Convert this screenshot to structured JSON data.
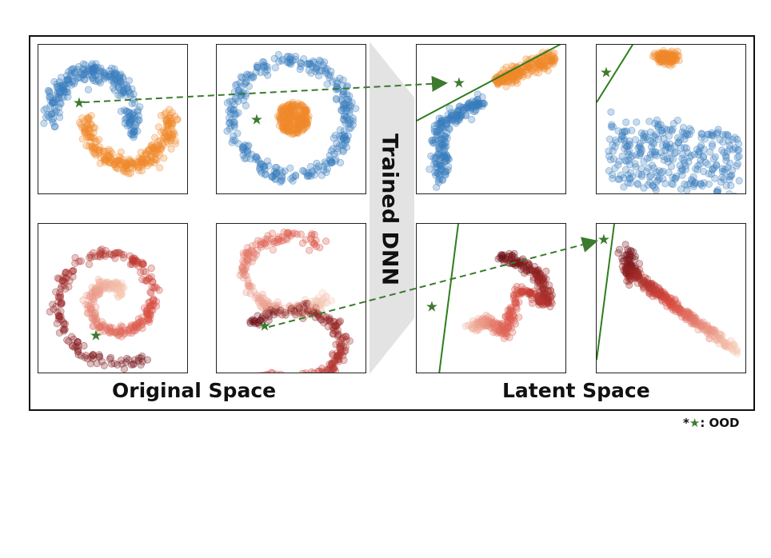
{
  "bar_label": "Trained DNN",
  "original_label": "Original Space",
  "latent_label": "Latent Space",
  "legend": {
    "prefix": "*",
    "icon": "green-star-icon",
    "text": ": OOD"
  },
  "colors": {
    "blue": "#3a7dbd",
    "orange": "#f0892a",
    "ood_star": "#3c7a2e",
    "boundary": "#2e7d1e",
    "red_dark": "#6e0f16",
    "red_mid": "#d94a3e",
    "red_light": "#f7cdb8",
    "bar_gray": "#e3e3e3"
  },
  "panels": [
    {
      "id": "two-moons-original",
      "space": "original",
      "type": "two-moons"
    },
    {
      "id": "concentric-circles-original",
      "space": "original",
      "type": "circles"
    },
    {
      "id": "two-moons-latent",
      "space": "latent",
      "type": "latent-moons"
    },
    {
      "id": "concentric-circles-latent",
      "space": "latent",
      "type": "latent-circles"
    },
    {
      "id": "spiral-original",
      "space": "original",
      "type": "spiral"
    },
    {
      "id": "s-curve-original",
      "space": "original",
      "type": "s-curve"
    },
    {
      "id": "spiral-latent",
      "space": "latent",
      "type": "latent-zigzag"
    },
    {
      "id": "s-curve-latent",
      "space": "latent",
      "type": "latent-diagonal"
    }
  ]
}
